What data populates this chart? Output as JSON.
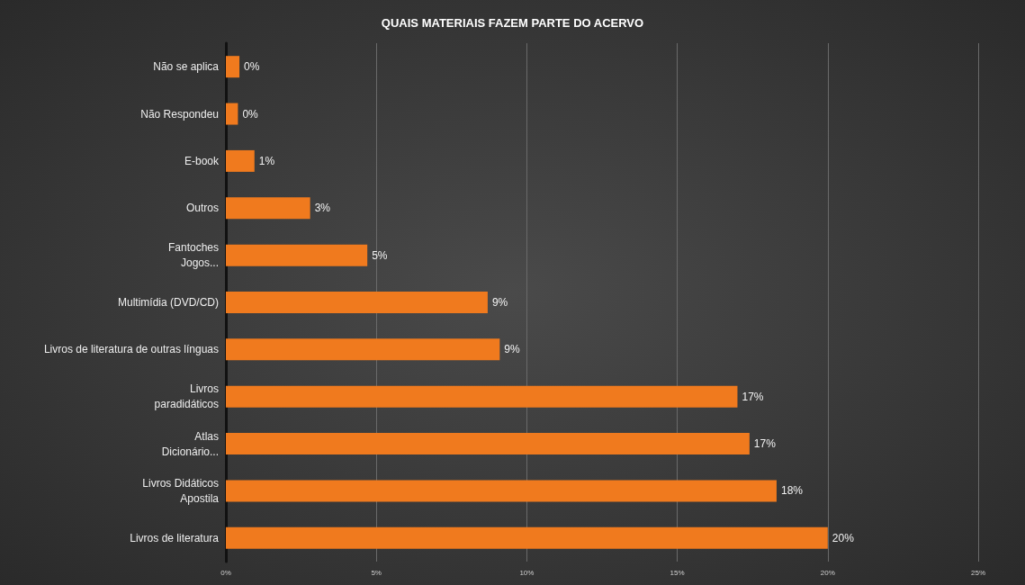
{
  "chart_data": {
    "type": "bar",
    "orientation": "horizontal",
    "title": "QUAIS MATERIAIS FAZEM PARTE DO ACERVO",
    "categories": [
      "Não se aplica",
      "Não Respondeu",
      "E-book",
      "Outros",
      "Fantoches\nJogos...",
      "Multimídia (DVD/CD)",
      "Livros de literatura de outras línguas",
      "Livros\nparadidáticos",
      "Atlas\nDicionário...",
      "Livros Didáticos\nApostila",
      "Livros de literatura"
    ],
    "values": [
      0.45,
      0.4,
      0.95,
      2.8,
      4.7,
      8.7,
      9.1,
      17.0,
      17.4,
      18.3,
      20.0
    ],
    "value_labels": [
      "0%",
      "0%",
      "1%",
      "3%",
      "5%",
      "9%",
      "9%",
      "17%",
      "17%",
      "18%",
      "20%"
    ],
    "color": "#f07a1e",
    "xlim": [
      0,
      25
    ],
    "xticks": [
      {
        "value": 0,
        "label": "0%"
      },
      {
        "value": 5,
        "label": "5%"
      },
      {
        "value": 10,
        "label": "10%"
      },
      {
        "value": 15,
        "label": "15%"
      },
      {
        "value": 20,
        "label": "20%"
      },
      {
        "value": 25,
        "label": "25%"
      }
    ],
    "grid": "x"
  }
}
